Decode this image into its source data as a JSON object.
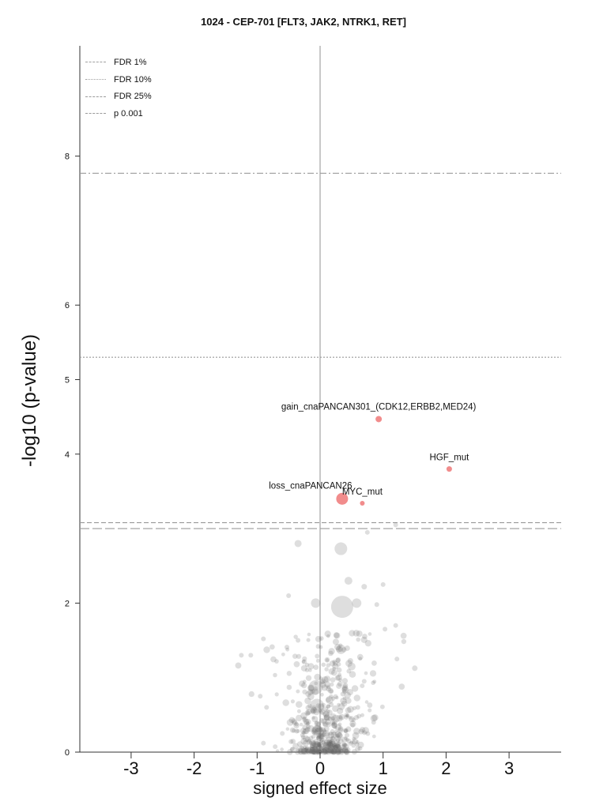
{
  "chart_data": {
    "type": "scatter",
    "title": "1024 - CEP-701 [FLT3, JAK2, NTRK1, RET]",
    "xlabel": "signed effect size",
    "ylabel": "-log10 (p-value)",
    "xlim": [
      -3.8,
      3.85
    ],
    "ylim": [
      0,
      9.5
    ],
    "x_ticks": [
      -3,
      -2,
      -1,
      0,
      1,
      2,
      3
    ],
    "y_ticks": [
      0,
      2,
      4,
      5,
      6,
      8
    ],
    "grid": false,
    "legend_position": "top-left",
    "threshold_lines": [
      {
        "label": "FDR 1%",
        "y": 7.77,
        "style": "dashdot"
      },
      {
        "label": "FDR 10%",
        "y": 5.3,
        "style": "dotted"
      },
      {
        "label": "FDR 25%",
        "y": 3.08,
        "style": "dashed"
      },
      {
        "label": "p 0.001",
        "y": 3.0,
        "style": "longdash"
      }
    ],
    "highlighted_points": [
      {
        "label": "gain_cnaPANCAN301_(CDK12,ERBB2,MED24)",
        "x": 0.93,
        "y": 4.47,
        "size": 4
      },
      {
        "label": "HGF_mut",
        "x": 2.05,
        "y": 3.8,
        "size": 3.5
      },
      {
        "label": "loss_cnaPANCAN26",
        "x": 0.35,
        "y": 3.4,
        "size": 7.5
      },
      {
        "label": "MYC_mut",
        "x": 0.67,
        "y": 3.34,
        "size": 3
      }
    ],
    "background_points": [
      [
        -0.35,
        2.8,
        4.5
      ],
      [
        0.33,
        2.73,
        8
      ],
      [
        0.75,
        2.95,
        3
      ],
      [
        1.2,
        3.05,
        3
      ],
      [
        0.45,
        2.3,
        5
      ],
      [
        0.7,
        2.22,
        3.5
      ],
      [
        1.0,
        2.25,
        3
      ],
      [
        0.35,
        1.95,
        14
      ],
      [
        0.58,
        2.0,
        6
      ],
      [
        -0.07,
        2.0,
        6
      ],
      [
        -0.5,
        2.1,
        3
      ],
      [
        -0.35,
        1.5,
        3
      ],
      [
        -0.9,
        1.52,
        3
      ],
      [
        -1.25,
        1.3,
        3
      ],
      [
        -1.1,
        1.3,
        3
      ],
      [
        1.2,
        1.7,
        3
      ],
      [
        1.22,
        1.25,
        3
      ],
      [
        1.03,
        1.65,
        3
      ],
      [
        0.9,
        1.98,
        3
      ],
      [
        0.25,
        1.48,
        4
      ],
      [
        0.33,
        1.38,
        6
      ],
      [
        0.5,
        1.15,
        5
      ],
      [
        0.3,
        1.0,
        4
      ],
      [
        -0.07,
        0.87,
        9
      ],
      [
        -0.05,
        0.62,
        9
      ],
      [
        0.15,
        0.7,
        5
      ],
      [
        0.25,
        0.45,
        5
      ],
      [
        -0.05,
        0.3,
        6
      ],
      [
        0.1,
        0.25,
        4
      ],
      [
        -0.6,
        0.25,
        3
      ],
      [
        -0.9,
        0.12,
        3
      ],
      [
        0.7,
        0.95,
        3
      ],
      [
        0.85,
        0.4,
        3
      ],
      [
        -0.85,
        0.6,
        3
      ],
      [
        -0.95,
        0.75,
        3
      ],
      [
        0.6,
        0.6,
        3
      ]
    ],
    "cluster_summary": {
      "x_center": 0.05,
      "x_spread": 0.45,
      "max_y": 1.6,
      "count": 520
    }
  }
}
